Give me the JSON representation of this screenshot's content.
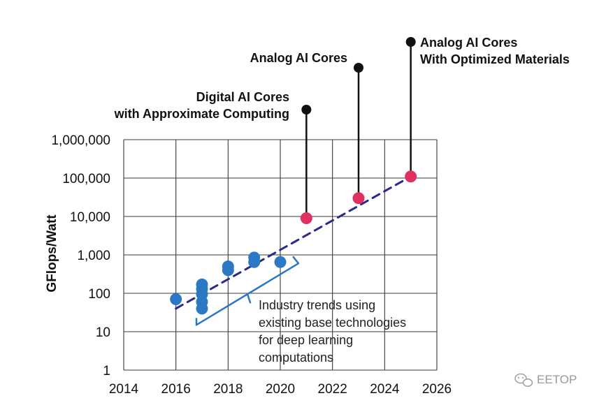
{
  "chart_data": {
    "type": "scatter",
    "ylabel": "GFlops/Watt",
    "y_scale": "log",
    "xlim": [
      2014,
      2026
    ],
    "ylim": [
      1,
      1000000
    ],
    "x_ticks": [
      "2014",
      "2016",
      "2018",
      "2020",
      "2022",
      "2024",
      "2026"
    ],
    "y_ticks": [
      "1",
      "10",
      "100",
      "1,000",
      "10,000",
      "100,000",
      "1,000,000"
    ],
    "grid": true,
    "series": [
      {
        "color": "#2b78c5",
        "points": [
          {
            "x": 2016,
            "y": 70
          },
          {
            "x": 2017,
            "y": 170
          },
          {
            "x": 2017,
            "y": 130
          },
          {
            "x": 2017,
            "y": 95
          },
          {
            "x": 2017,
            "y": 60
          },
          {
            "x": 2017,
            "y": 40
          },
          {
            "x": 2018,
            "y": 500
          },
          {
            "x": 2018,
            "y": 400
          },
          {
            "x": 2019,
            "y": 850
          },
          {
            "x": 2019,
            "y": 650
          },
          {
            "x": 2020,
            "y": 650
          }
        ]
      },
      {
        "color": "#e03060",
        "points": [
          {
            "x": 2021,
            "y": 9000
          },
          {
            "x": 2023,
            "y": 30000
          },
          {
            "x": 2025,
            "y": 110000
          }
        ]
      }
    ],
    "trend_line": {
      "color": "#2a2a8c",
      "from": {
        "x": 2016,
        "y": 40
      },
      "to": {
        "x": 2025,
        "y": 110000
      }
    },
    "callouts": [
      {
        "x": 2021,
        "lines": [
          "Digital AI Cores",
          "with Approximate Computing"
        ]
      },
      {
        "x": 2023,
        "lines": [
          "Analog AI Cores"
        ]
      },
      {
        "x": 2025,
        "lines": [
          "Analog AI Cores",
          "With Optimized Materials"
        ]
      }
    ],
    "annotation": {
      "color": "#2b78c5",
      "lines": [
        "Industry trends using",
        "existing base technologies",
        "for deep learning",
        "computations"
      ]
    }
  },
  "watermark": "EETOP"
}
